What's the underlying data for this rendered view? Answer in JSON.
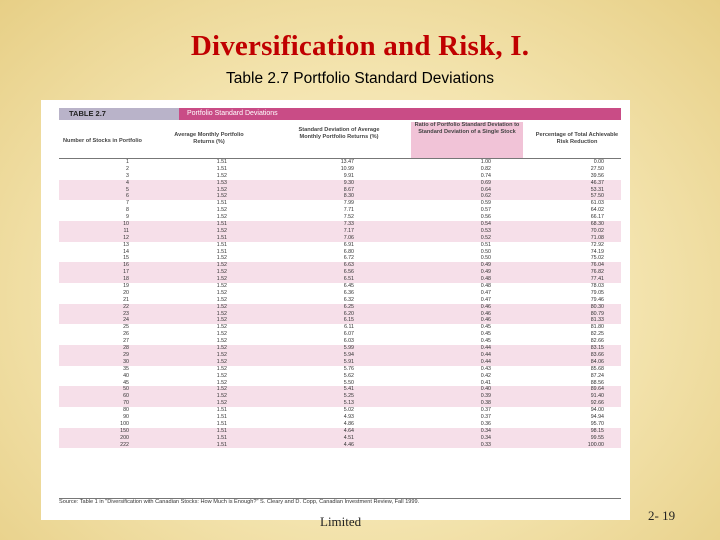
{
  "slide": {
    "title": "Diversification and Risk, I.",
    "subtitle": "Table 2.7 Portfolio Standard Deviations",
    "footer_text": "Limited",
    "page_number": "2- 19"
  },
  "table": {
    "badge": "TABLE 2.7",
    "name": "Portfolio Standard Deviations",
    "headers": [
      "Number of Stocks in Portfolio",
      "Average Monthly Portfolio Returns (%)",
      "Standard Deviation of Average Monthly Portfolio Returns (%)",
      "Ratio of Portfolio Standard Deviation to Standard Deviation of a Single Stock",
      "Percentage of Total Achievable Risk Reduction"
    ],
    "rows": [
      [
        "1",
        "1.51",
        "13.47",
        "1.00",
        "0.00"
      ],
      [
        "2",
        "1.51",
        "10.99",
        "0.82",
        "27.50"
      ],
      [
        "3",
        "1.52",
        "9.91",
        "0.74",
        "39.56"
      ],
      [
        "4",
        "1.53",
        "9.30",
        "0.69",
        "46.37"
      ],
      [
        "5",
        "1.52",
        "8.67",
        "0.64",
        "53.31"
      ],
      [
        "6",
        "1.52",
        "8.30",
        "0.62",
        "57.50"
      ],
      [
        "7",
        "1.51",
        "7.99",
        "0.59",
        "61.03"
      ],
      [
        "8",
        "1.52",
        "7.71",
        "0.57",
        "64.02"
      ],
      [
        "9",
        "1.52",
        "7.52",
        "0.56",
        "66.17"
      ],
      [
        "10",
        "1.51",
        "7.33",
        "0.54",
        "68.30"
      ],
      [
        "11",
        "1.52",
        "7.17",
        "0.53",
        "70.02"
      ],
      [
        "12",
        "1.51",
        "7.06",
        "0.52",
        "71.08"
      ],
      [
        "13",
        "1.51",
        "6.91",
        "0.51",
        "72.92"
      ],
      [
        "14",
        "1.51",
        "6.80",
        "0.50",
        "74.19"
      ],
      [
        "15",
        "1.52",
        "6.72",
        "0.50",
        "75.02"
      ],
      [
        "16",
        "1.52",
        "6.63",
        "0.49",
        "76.04"
      ],
      [
        "17",
        "1.52",
        "6.56",
        "0.49",
        "76.82"
      ],
      [
        "18",
        "1.52",
        "6.51",
        "0.48",
        "77.41"
      ],
      [
        "19",
        "1.52",
        "6.45",
        "0.48",
        "78.03"
      ],
      [
        "20",
        "1.52",
        "6.36",
        "0.47",
        "79.05"
      ],
      [
        "21",
        "1.52",
        "6.32",
        "0.47",
        "79.46"
      ],
      [
        "22",
        "1.52",
        "6.25",
        "0.46",
        "80.30"
      ],
      [
        "23",
        "1.52",
        "6.20",
        "0.46",
        "80.79"
      ],
      [
        "24",
        "1.52",
        "6.15",
        "0.46",
        "81.33"
      ],
      [
        "25",
        "1.52",
        "6.11",
        "0.45",
        "81.80"
      ],
      [
        "26",
        "1.52",
        "6.07",
        "0.45",
        "82.25"
      ],
      [
        "27",
        "1.52",
        "6.03",
        "0.45",
        "82.66"
      ],
      [
        "28",
        "1.52",
        "5.99",
        "0.44",
        "83.15"
      ],
      [
        "29",
        "1.52",
        "5.94",
        "0.44",
        "83.66"
      ],
      [
        "30",
        "1.52",
        "5.91",
        "0.44",
        "84.06"
      ],
      [
        "35",
        "1.52",
        "5.76",
        "0.43",
        "85.68"
      ],
      [
        "40",
        "1.52",
        "5.62",
        "0.42",
        "87.24"
      ],
      [
        "45",
        "1.52",
        "5.50",
        "0.41",
        "88.56"
      ],
      [
        "50",
        "1.52",
        "5.41",
        "0.40",
        "89.64"
      ],
      [
        "60",
        "1.52",
        "5.25",
        "0.39",
        "91.40"
      ],
      [
        "70",
        "1.52",
        "5.13",
        "0.38",
        "92.66"
      ],
      [
        "80",
        "1.51",
        "5.02",
        "0.37",
        "94.00"
      ],
      [
        "90",
        "1.51",
        "4.93",
        "0.37",
        "94.94"
      ],
      [
        "100",
        "1.51",
        "4.86",
        "0.36",
        "95.70"
      ],
      [
        "150",
        "1.51",
        "4.64",
        "0.34",
        "98.15"
      ],
      [
        "200",
        "1.51",
        "4.51",
        "0.34",
        "99.55"
      ],
      [
        "222",
        "1.51",
        "4.46",
        "0.33",
        "100.00"
      ]
    ],
    "source": "Source: Table 1 in \"Diversification with Canadian Stocks: How Much is Enough?\" S. Cleary and D. Copp, Canadian Investment Review, Fall 1999."
  }
}
